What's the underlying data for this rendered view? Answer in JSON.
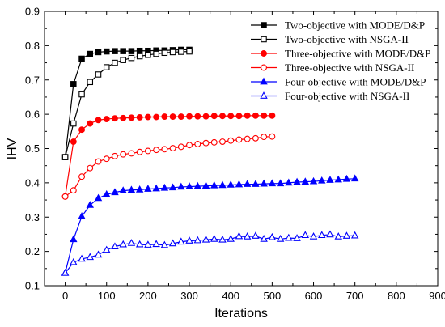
{
  "chart_data": {
    "type": "line",
    "title": "",
    "xlabel": "Iterations",
    "ylabel": "IHV",
    "xlim": [
      -50,
      900
    ],
    "ylim": [
      0.1,
      0.9
    ],
    "xticks": [
      0,
      100,
      200,
      300,
      400,
      500,
      600,
      700,
      800,
      900
    ],
    "yticks": [
      0.1,
      0.2,
      0.3,
      0.4,
      0.5,
      0.6,
      0.7,
      0.8,
      0.9
    ],
    "xtick_labels": [
      "0",
      "100",
      "200",
      "300",
      "400",
      "500",
      "600",
      "700",
      "800",
      "900"
    ],
    "ytick_labels": [
      "0.1",
      "0.2",
      "0.3",
      "0.4",
      "0.5",
      "0.6",
      "0.7",
      "0.8",
      "0.9"
    ],
    "grid": false,
    "legend_position": "top-right",
    "series": [
      {
        "name": "Two-objective with MODE/D&P",
        "color": "#000000",
        "marker": "square",
        "filled": true,
        "x": [
          0,
          20,
          40,
          60,
          80,
          100,
          120,
          140,
          160,
          180,
          200,
          220,
          240,
          260,
          280,
          300
        ],
        "y": [
          0.475,
          0.688,
          0.762,
          0.776,
          0.781,
          0.783,
          0.784,
          0.784,
          0.784,
          0.785,
          0.785,
          0.786,
          0.786,
          0.787,
          0.788,
          0.788
        ]
      },
      {
        "name": "Two-objective with NSGA-II",
        "color": "#000000",
        "marker": "square",
        "filled": false,
        "x": [
          0,
          20,
          40,
          60,
          80,
          100,
          120,
          140,
          160,
          180,
          200,
          220,
          240,
          260,
          280,
          300
        ],
        "y": [
          0.475,
          0.573,
          0.658,
          0.694,
          0.716,
          0.737,
          0.75,
          0.758,
          0.764,
          0.769,
          0.773,
          0.776,
          0.779,
          0.781,
          0.782,
          0.783
        ]
      },
      {
        "name": "Three-objective with MODE/D&P",
        "color": "#ff0000",
        "marker": "circle",
        "filled": true,
        "x": [
          0,
          20,
          40,
          60,
          80,
          100,
          120,
          140,
          160,
          180,
          200,
          220,
          240,
          260,
          280,
          300,
          320,
          340,
          360,
          380,
          400,
          420,
          440,
          460,
          480,
          500
        ],
        "y": [
          0.36,
          0.52,
          0.555,
          0.573,
          0.583,
          0.586,
          0.588,
          0.589,
          0.59,
          0.591,
          0.592,
          0.592,
          0.593,
          0.593,
          0.593,
          0.594,
          0.594,
          0.594,
          0.595,
          0.595,
          0.595,
          0.595,
          0.596,
          0.596,
          0.596,
          0.596
        ]
      },
      {
        "name": "Three-objective with NSGA-II",
        "color": "#ff0000",
        "marker": "circle",
        "filled": false,
        "x": [
          0,
          20,
          40,
          60,
          80,
          100,
          120,
          140,
          160,
          180,
          200,
          220,
          240,
          260,
          280,
          300,
          320,
          340,
          360,
          380,
          400,
          420,
          440,
          460,
          480,
          500
        ],
        "y": [
          0.36,
          0.378,
          0.418,
          0.443,
          0.462,
          0.47,
          0.478,
          0.483,
          0.486,
          0.49,
          0.493,
          0.496,
          0.498,
          0.501,
          0.505,
          0.51,
          0.513,
          0.516,
          0.518,
          0.52,
          0.523,
          0.526,
          0.528,
          0.53,
          0.534,
          0.535
        ]
      },
      {
        "name": "Four-objective with MODE/D&P",
        "color": "#0000ff",
        "marker": "triangle",
        "filled": true,
        "x": [
          0,
          20,
          40,
          60,
          80,
          100,
          120,
          140,
          160,
          180,
          200,
          220,
          240,
          260,
          280,
          300,
          320,
          340,
          360,
          380,
          400,
          420,
          440,
          460,
          480,
          500,
          520,
          540,
          560,
          580,
          600,
          620,
          640,
          660,
          680,
          700
        ],
        "y": [
          0.137,
          0.235,
          0.302,
          0.335,
          0.355,
          0.366,
          0.372,
          0.377,
          0.379,
          0.38,
          0.382,
          0.383,
          0.385,
          0.386,
          0.388,
          0.389,
          0.39,
          0.391,
          0.392,
          0.393,
          0.394,
          0.395,
          0.396,
          0.396,
          0.397,
          0.398,
          0.398,
          0.4,
          0.402,
          0.403,
          0.404,
          0.406,
          0.408,
          0.409,
          0.411,
          0.412
        ]
      },
      {
        "name": "Four-objective with NSGA-II",
        "color": "#0000ff",
        "marker": "triangle",
        "filled": false,
        "x": [
          0,
          20,
          40,
          60,
          80,
          100,
          120,
          140,
          160,
          180,
          200,
          220,
          240,
          260,
          280,
          300,
          320,
          340,
          360,
          380,
          400,
          420,
          440,
          460,
          480,
          500,
          520,
          540,
          560,
          580,
          600,
          620,
          640,
          660,
          680,
          700
        ],
        "y": [
          0.137,
          0.168,
          0.178,
          0.183,
          0.19,
          0.204,
          0.214,
          0.22,
          0.224,
          0.22,
          0.219,
          0.221,
          0.218,
          0.223,
          0.228,
          0.231,
          0.232,
          0.234,
          0.236,
          0.234,
          0.236,
          0.244,
          0.243,
          0.245,
          0.236,
          0.241,
          0.236,
          0.239,
          0.238,
          0.247,
          0.243,
          0.247,
          0.249,
          0.243,
          0.245,
          0.246
        ]
      }
    ]
  }
}
